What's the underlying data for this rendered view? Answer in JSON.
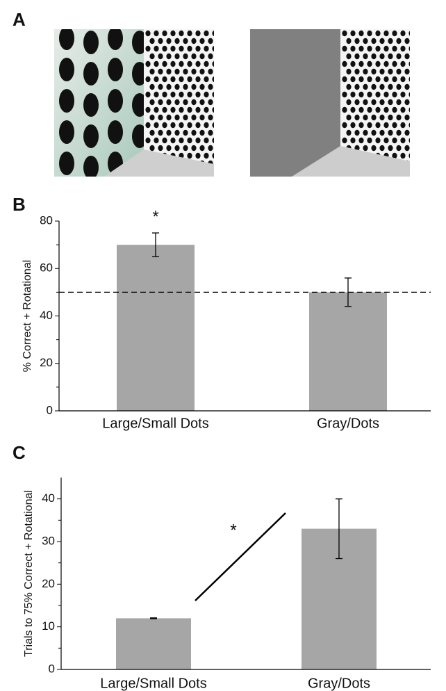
{
  "panels": [
    "A",
    "B",
    "C"
  ],
  "chart_data": [
    {
      "type": "bar",
      "y_label": "% Correct + Rotational",
      "categories": [
        "Large/Small Dots",
        "Gray/Dots"
      ],
      "values": [
        70,
        50
      ],
      "errors": [
        5,
        6
      ],
      "color": "#a6a6a6",
      "ylim": [
        0,
        80
      ],
      "yticks": [
        0,
        20,
        40,
        60,
        80
      ],
      "yminorticks": [
        10,
        30,
        50,
        70
      ],
      "reference_line": 50,
      "annotation": "*"
    },
    {
      "type": "bar",
      "y_label": "Trials to 75% Correct + Rotational",
      "categories": [
        "Large/Small Dots",
        "Gray/Dots"
      ],
      "values": [
        12,
        33
      ],
      "errors": [
        0.1,
        7
      ],
      "color": "#a6a6a6",
      "ylim": [
        0,
        45
      ],
      "yticks": [
        0,
        10,
        20,
        30,
        40
      ],
      "yminorticks": [
        5,
        15,
        25,
        35
      ],
      "annotation": "*"
    }
  ]
}
